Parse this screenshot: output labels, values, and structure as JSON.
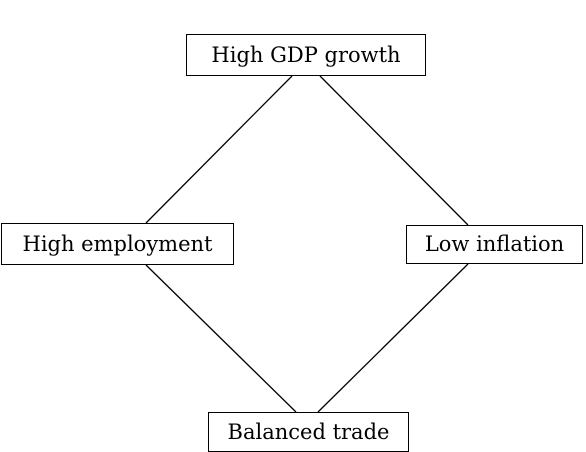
{
  "diagram": {
    "nodes": [
      {
        "id": "top",
        "label": "High GDP growth"
      },
      {
        "id": "left",
        "label": "High employment"
      },
      {
        "id": "right",
        "label": "Low inflation"
      },
      {
        "id": "bottom",
        "label": "Balanced trade"
      }
    ],
    "edges": [
      {
        "from": "top",
        "to": "left"
      },
      {
        "from": "top",
        "to": "right"
      },
      {
        "from": "left",
        "to": "bottom"
      },
      {
        "from": "right",
        "to": "bottom"
      }
    ],
    "colors": {
      "line": "#000000",
      "text": "#000000",
      "background": "#ffffff"
    }
  }
}
